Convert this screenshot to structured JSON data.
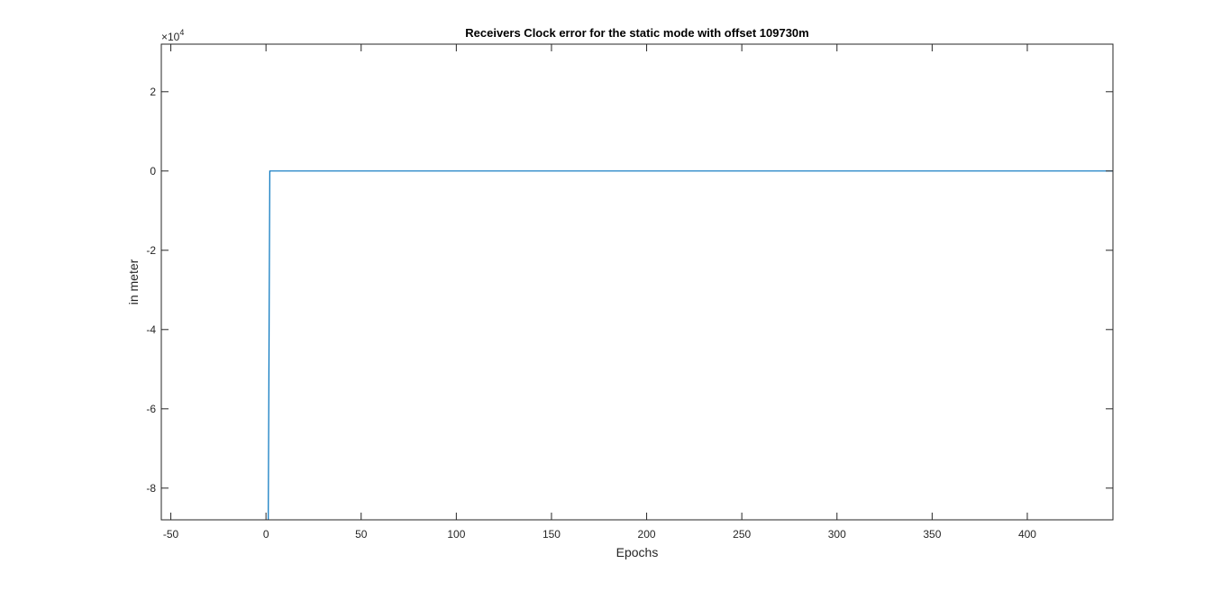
{
  "chart_data": {
    "type": "line",
    "title": "Receivers Clock error for the static mode with offset 109730m",
    "xlabel": "Epochs",
    "ylabel": "in meter",
    "xlim": [
      -55,
      445
    ],
    "ylim": [
      -88000,
      32000
    ],
    "x_ticks": [
      -50,
      0,
      50,
      100,
      150,
      200,
      250,
      300,
      350,
      400
    ],
    "y_ticks": [
      -80000,
      -60000,
      -40000,
      -20000,
      0,
      20000
    ],
    "y_tick_labels": [
      "-8",
      "-6",
      "-4",
      "-2",
      "0",
      "2"
    ],
    "y_exponent_base": "×10",
    "y_exponent_power": "4",
    "grid": false,
    "legend": "none",
    "line_color": "#0072BD",
    "series": [
      {
        "x": [
          1,
          2,
          445
        ],
        "y": [
          -109730,
          0,
          0
        ]
      }
    ]
  }
}
